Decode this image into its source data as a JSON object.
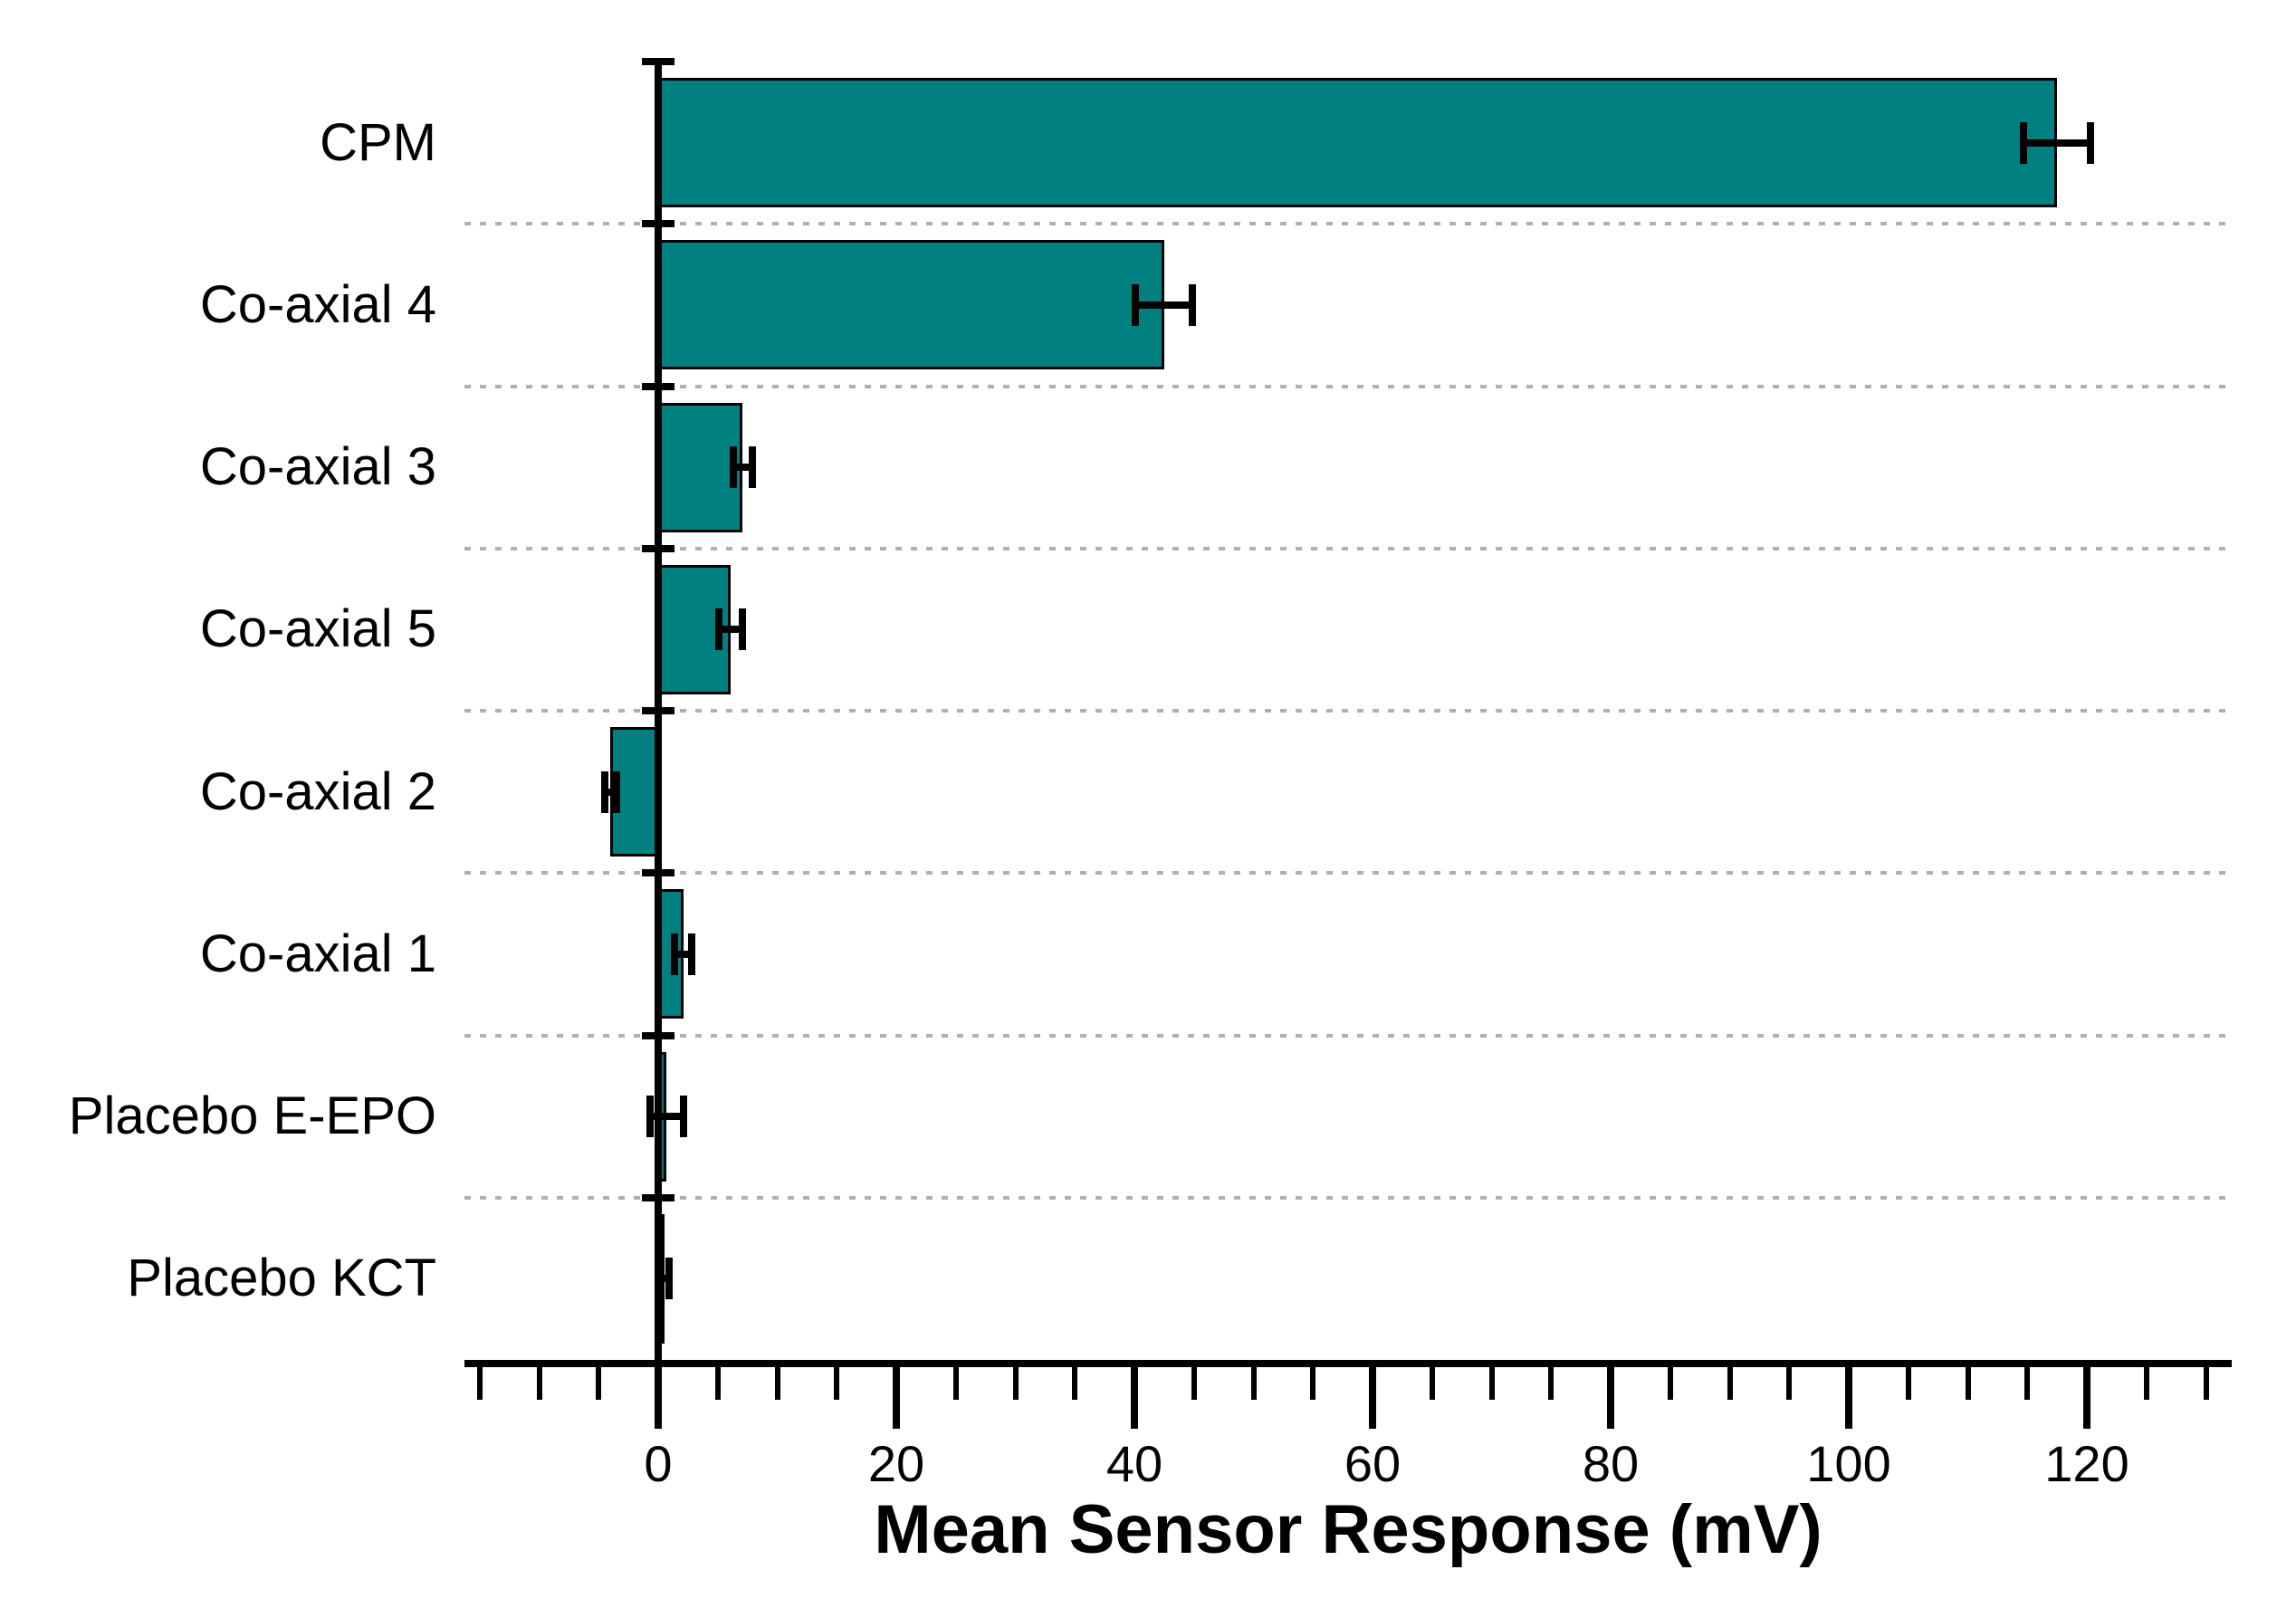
{
  "chart_data": {
    "type": "bar",
    "orientation": "horizontal",
    "title": "",
    "xlabel": "Mean Sensor Response (mV)",
    "ylabel": "",
    "categories": [
      "CPM",
      "Co-axial 4",
      "Co-axial 3",
      "Co-axial 5",
      "Co-axial 2",
      "Co-axial 1",
      "Placebo E-EPO",
      "Placebo KCT"
    ],
    "values": [
      117.5,
      42.5,
      7.1,
      6.1,
      -4.0,
      2.1,
      0.7,
      0.5
    ],
    "errors": [
      2.8,
      2.4,
      0.8,
      1.0,
      0.5,
      0.7,
      1.4,
      0.4
    ],
    "xlim": [
      -16.3,
      132.2
    ],
    "xticks": [
      0,
      20,
      40,
      60,
      80,
      100,
      120
    ],
    "xtick_labels": [
      "0",
      "20",
      "40",
      "60",
      "80",
      "100",
      "120"
    ],
    "minor_tick_step": 5,
    "grid": "dotted horizontal lines between category rows",
    "legend_position": "none",
    "colors": {
      "bar_fill": "#008080",
      "bar_border": "#000000",
      "error_bar": "#000000",
      "gridline": "#b0b0b0",
      "axis": "#000000",
      "background": "#ffffff"
    }
  }
}
